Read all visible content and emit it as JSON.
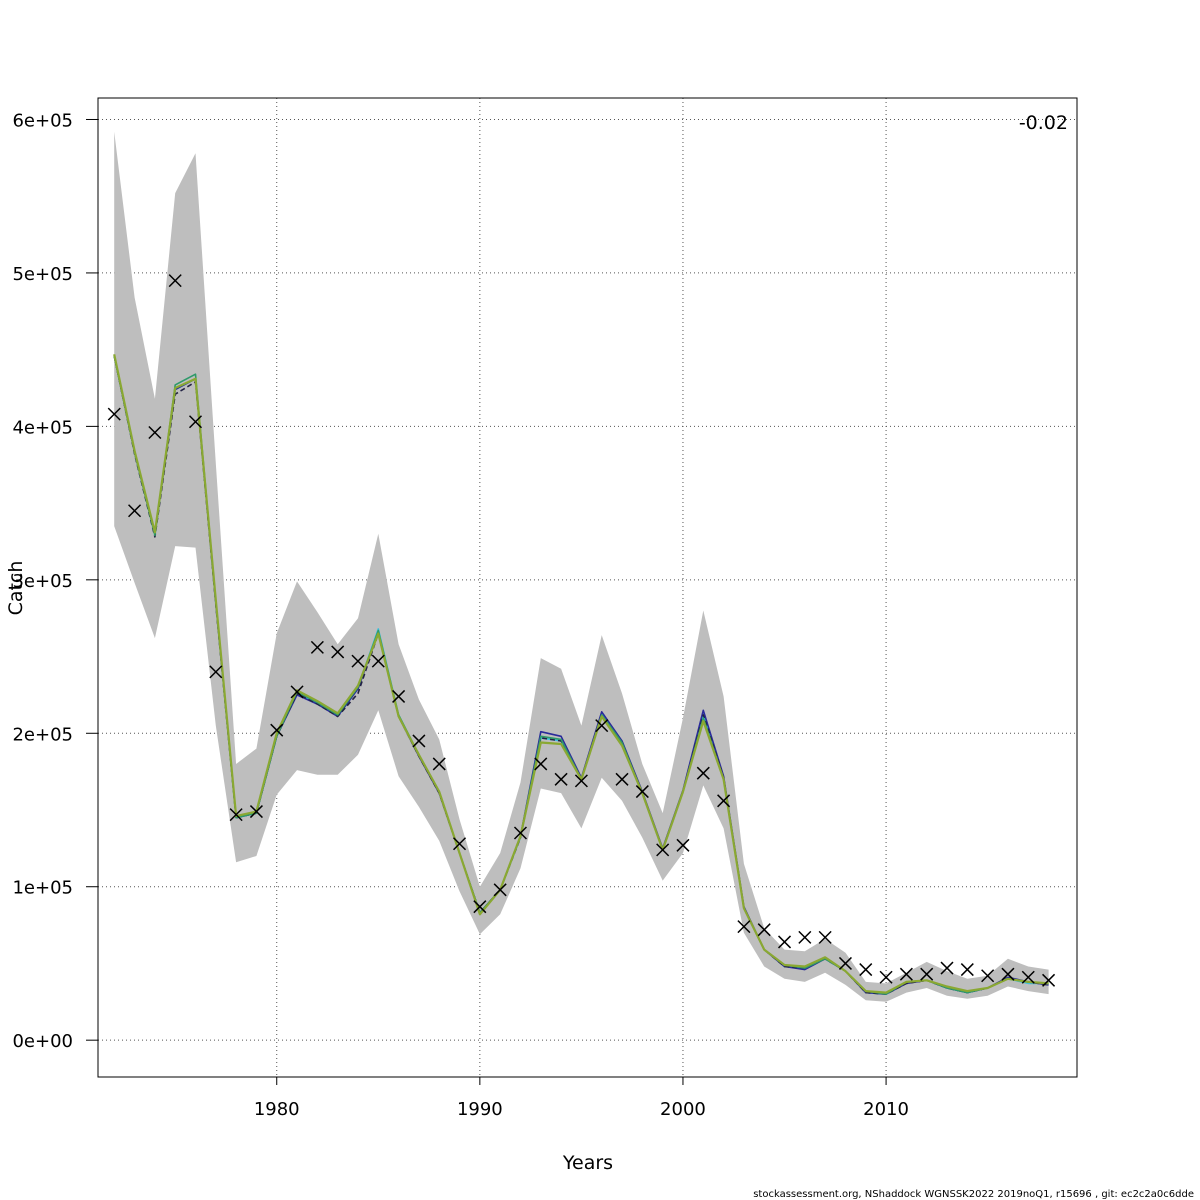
{
  "chart_data": {
    "type": "line",
    "title": "",
    "xlabel": "Years",
    "ylabel": "Catch",
    "annotation": "-0.02",
    "footer": "stockassessment.org, NShaddock  WGNSSK2022  2019noQ1, r15696 , git: ec2c2a0c6dde",
    "xlim": [
      1971.2,
      2019.4
    ],
    "ylim": [
      -24000,
      614000
    ],
    "x_ticks": [
      1980,
      1990,
      2000,
      2010
    ],
    "x_tick_labels": [
      "1980",
      "1990",
      "2000",
      "2010"
    ],
    "y_ticks": [
      0,
      100000,
      200000,
      300000,
      400000,
      500000,
      600000
    ],
    "y_tick_labels": [
      "0e+00",
      "1e+05",
      "2e+05",
      "3e+05",
      "4e+05",
      "5e+05",
      "6e+05"
    ],
    "grid": true,
    "years": [
      1972,
      1973,
      1974,
      1975,
      1976,
      1977,
      1978,
      1979,
      1980,
      1981,
      1982,
      1983,
      1984,
      1985,
      1986,
      1987,
      1988,
      1989,
      1990,
      1991,
      1992,
      1993,
      1994,
      1995,
      1996,
      1997,
      1998,
      1999,
      2000,
      2001,
      2002,
      2003,
      2004,
      2005,
      2006,
      2007,
      2008,
      2009,
      2010,
      2011,
      2012,
      2013,
      2014,
      2015,
      2016,
      2017,
      2018
    ],
    "ci_lower": [
      335000,
      298000,
      262000,
      322000,
      321000,
      205000,
      116000,
      120000,
      160000,
      176000,
      173000,
      173000,
      186000,
      215000,
      172000,
      152000,
      130000,
      97000,
      69000,
      82000,
      112000,
      164000,
      161000,
      138000,
      171000,
      156000,
      132000,
      104000,
      122000,
      166000,
      138000,
      70000,
      48000,
      40000,
      38000,
      44000,
      36000,
      26000,
      25000,
      31000,
      34000,
      29000,
      27000,
      29000,
      35000,
      32000,
      30000
    ],
    "ci_upper": [
      592000,
      484000,
      418000,
      552000,
      578000,
      376000,
      180000,
      190000,
      265000,
      299000,
      279000,
      258000,
      275000,
      330000,
      258000,
      222000,
      196000,
      144000,
      100000,
      122000,
      168000,
      249000,
      242000,
      205000,
      264000,
      226000,
      180000,
      148000,
      210000,
      280000,
      224000,
      115000,
      73000,
      59000,
      58000,
      66000,
      57000,
      38000,
      37000,
      44000,
      51000,
      45000,
      40000,
      42000,
      53000,
      48000,
      46000
    ],
    "series": [
      {
        "name": "",
        "color": "#3cc0e0",
        "values": [
          446000,
          383000,
          330000,
          424000,
          431000,
          285000,
          145000,
          148000,
          198000,
          226000,
          219000,
          212000,
          230000,
          268000,
          212000,
          186000,
          162000,
          122000,
          83000,
          98000,
          132000,
          197000,
          195000,
          170000,
          213000,
          194000,
          161000,
          124000,
          162000,
          212000,
          171000,
          86000,
          59000,
          48000,
          47000,
          53000,
          45000,
          31000,
          30000,
          38000,
          39000,
          34000,
          31000,
          34000,
          40000,
          37000,
          37000
        ]
      },
      {
        "name": "",
        "color": "#2a2a9a",
        "values": [
          446000,
          383000,
          330000,
          424000,
          431000,
          285000,
          145000,
          148000,
          198000,
          225000,
          219000,
          211000,
          229000,
          266000,
          211000,
          185000,
          161000,
          122000,
          83000,
          98000,
          133000,
          201000,
          198000,
          171000,
          214000,
          195000,
          162000,
          125000,
          163000,
          215000,
          172000,
          87000,
          59000,
          48000,
          46000,
          53000,
          45000,
          31000,
          30000,
          37000,
          39000,
          34000,
          31000,
          34000,
          41000,
          38000,
          36000
        ]
      },
      {
        "name": "",
        "color": "#222244",
        "dash": true,
        "values": [
          446000,
          382000,
          328000,
          421000,
          429000,
          284000,
          145000,
          148000,
          198000,
          226000,
          219000,
          211000,
          226000,
          265000,
          211000,
          185000,
          161000,
          122000,
          83000,
          98000,
          132000,
          197000,
          195000,
          170000,
          211000,
          194000,
          161000,
          124000,
          162000,
          212000,
          171000,
          86000,
          59000,
          48000,
          47000,
          53000,
          45000,
          31000,
          30000,
          37000,
          39000,
          34000,
          31000,
          34000,
          40000,
          38000,
          36000
        ]
      },
      {
        "name": "",
        "color": "#2f9a6a",
        "values": [
          446000,
          383000,
          329000,
          427000,
          434000,
          286000,
          145000,
          148000,
          198000,
          227000,
          220000,
          212000,
          230000,
          267000,
          212000,
          186000,
          162000,
          122000,
          83000,
          98000,
          133000,
          198000,
          196000,
          170000,
          212000,
          194000,
          161000,
          124000,
          162000,
          210000,
          170000,
          86000,
          59000,
          49000,
          47000,
          53000,
          45000,
          32000,
          30000,
          38000,
          39000,
          34000,
          31000,
          34000,
          40000,
          38000,
          37000
        ]
      },
      {
        "name": "",
        "color": "#8aa832",
        "values": [
          447000,
          384000,
          331000,
          425000,
          431000,
          287000,
          146000,
          149000,
          200000,
          228000,
          221000,
          213000,
          231000,
          265000,
          211000,
          186000,
          162000,
          122000,
          82000,
          98000,
          133000,
          194000,
          193000,
          170000,
          211000,
          192000,
          161000,
          124000,
          162000,
          208000,
          170000,
          86000,
          59000,
          49000,
          48000,
          54000,
          45000,
          32000,
          31000,
          38000,
          39000,
          35000,
          32000,
          34000,
          40000,
          38000,
          37000
        ]
      }
    ],
    "observed": {
      "marker": "x",
      "years": [
        1972,
        1973,
        1974,
        1975,
        1976,
        1977,
        1978,
        1979,
        1980,
        1981,
        1982,
        1983,
        1984,
        1985,
        1986,
        1987,
        1988,
        1989,
        1990,
        1991,
        1992,
        1993,
        1994,
        1995,
        1996,
        1997,
        1998,
        1999,
        2000,
        2001,
        2002,
        2003,
        2004,
        2005,
        2006,
        2007,
        2008,
        2009,
        2010,
        2011,
        2012,
        2013,
        2014,
        2015,
        2016,
        2017,
        2018
      ],
      "values": [
        408000,
        345000,
        396000,
        495000,
        403000,
        240000,
        147000,
        149000,
        202000,
        227000,
        256000,
        253000,
        247000,
        247000,
        224000,
        195000,
        180000,
        128000,
        87000,
        98000,
        135000,
        180000,
        170000,
        169000,
        205000,
        170000,
        162000,
        124000,
        127000,
        174000,
        156000,
        74000,
        72000,
        64000,
        67000,
        67000,
        50000,
        46000,
        41000,
        43000,
        43000,
        47000,
        46000,
        42000,
        43000,
        41000,
        39000
      ]
    }
  }
}
